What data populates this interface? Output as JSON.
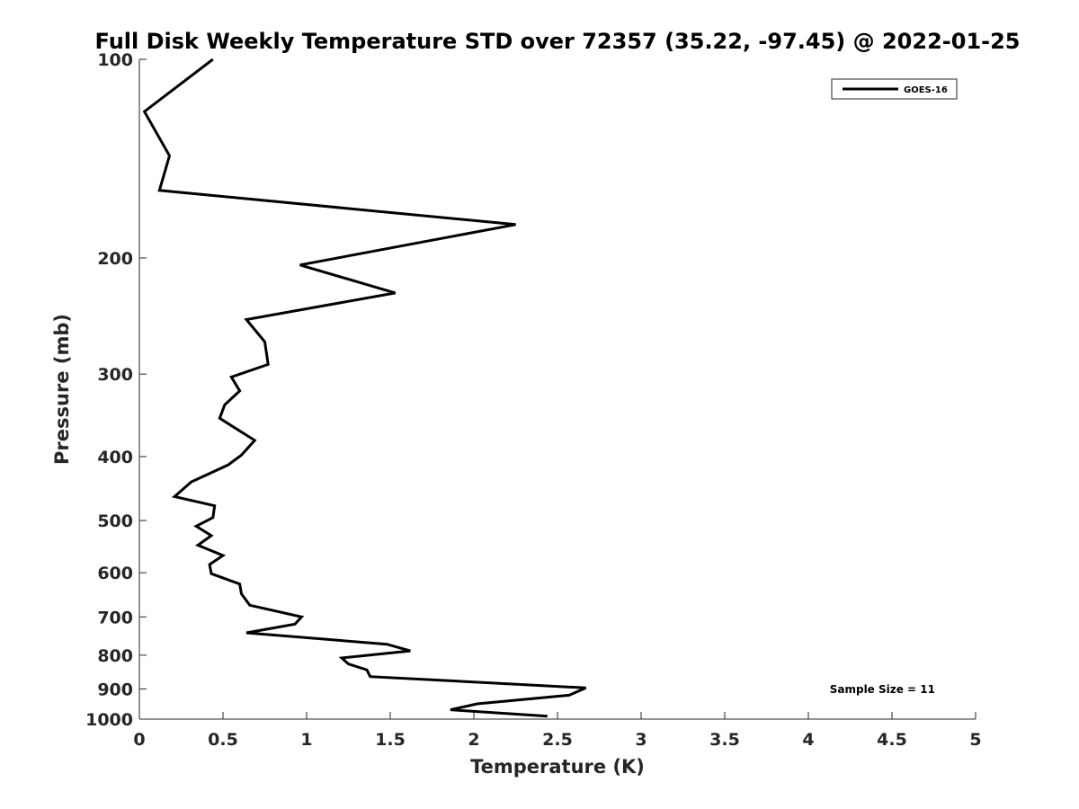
{
  "chart_data": {
    "type": "line",
    "title": "Full Disk Weekly Temperature STD over 72357 (35.22, -97.45) @ 2022-01-25",
    "xlabel": "Temperature (K)",
    "ylabel": "Pressure (mb)",
    "xlim": [
      0,
      5
    ],
    "ylim": [
      100,
      1000
    ],
    "y_scale": "log",
    "y_reversed": true,
    "x_ticks": [
      "0",
      "0.5",
      "1",
      "1.5",
      "2",
      "2.5",
      "3",
      "3.5",
      "4",
      "4.5",
      "5"
    ],
    "y_ticks": [
      "100",
      "200",
      "300",
      "400",
      "500",
      "600",
      "700",
      "800",
      "900",
      "1000"
    ],
    "grid": false,
    "legend_position": "top-right",
    "series": [
      {
        "name": "GOES-16",
        "color": "#000000",
        "x": [
          0.44,
          0.03,
          0.18,
          0.12,
          2.25,
          0.96,
          1.53,
          0.64,
          0.75,
          0.77,
          0.55,
          0.6,
          0.51,
          0.48,
          0.69,
          0.61,
          0.53,
          0.31,
          0.21,
          0.45,
          0.44,
          0.34,
          0.43,
          0.35,
          0.5,
          0.42,
          0.43,
          0.6,
          0.61,
          0.66,
          0.97,
          0.93,
          0.64,
          1.48,
          1.62,
          1.21,
          1.25,
          1.36,
          1.38,
          2.67,
          2.57,
          2.02,
          1.86,
          2.44
        ],
        "y": [
          100,
          120,
          140,
          158,
          178,
          205,
          226,
          248,
          268,
          290,
          303,
          318,
          334,
          350,
          378,
          398,
          412,
          437,
          460,
          475,
          495,
          510,
          527,
          545,
          565,
          583,
          602,
          624,
          646,
          672,
          700,
          718,
          740,
          770,
          788,
          808,
          825,
          842,
          862,
          897,
          920,
          948,
          968,
          990
        ]
      }
    ],
    "annotation": "Sample Size = 11"
  }
}
